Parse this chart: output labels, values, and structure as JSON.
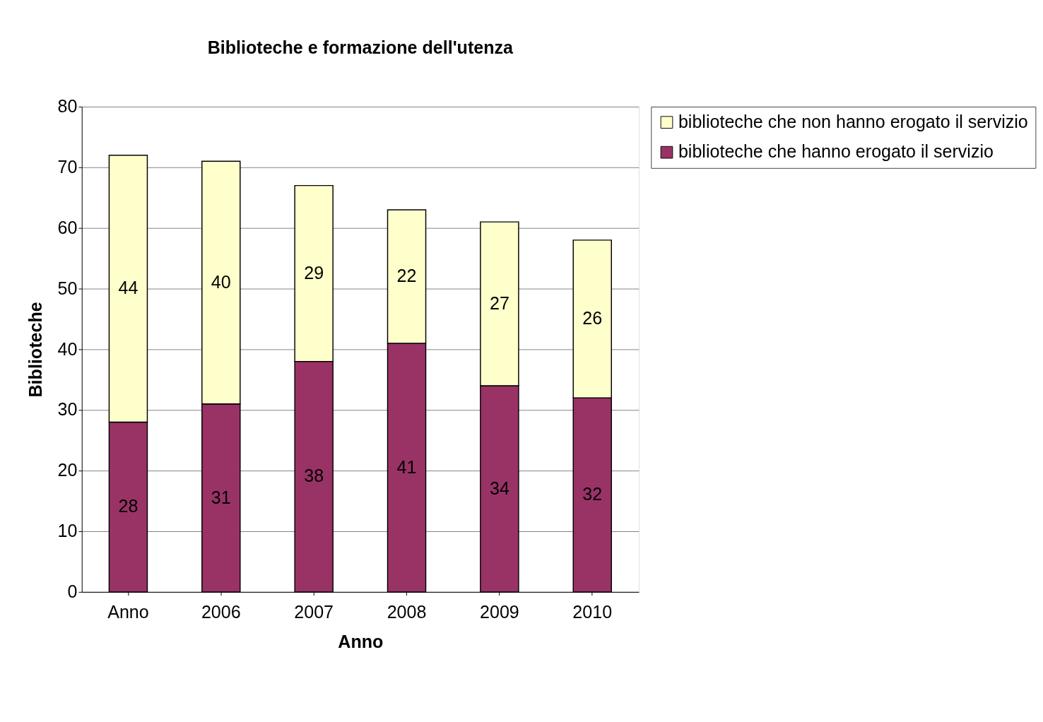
{
  "chart_data": {
    "type": "bar",
    "title": "Biblioteche e formazione dell'utenza",
    "xlabel": "Anno",
    "ylabel": "Biblioteche",
    "categories": [
      "Anno",
      "2006",
      "2007",
      "2008",
      "2009",
      "2010"
    ],
    "series": [
      {
        "name": "biblioteche che hanno erogato il servizio",
        "color": "#993366",
        "values": [
          28,
          31,
          38,
          41,
          34,
          32
        ]
      },
      {
        "name": "biblioteche che non hanno erogato il servizio",
        "color": "#ffffcc",
        "values": [
          44,
          40,
          29,
          22,
          27,
          26
        ]
      }
    ],
    "stacked": true,
    "ylim": [
      0,
      80
    ],
    "yticks": [
      0,
      10,
      20,
      30,
      40,
      50,
      60,
      70,
      80
    ],
    "grid": "y",
    "legend": "right",
    "data_labels": true
  }
}
